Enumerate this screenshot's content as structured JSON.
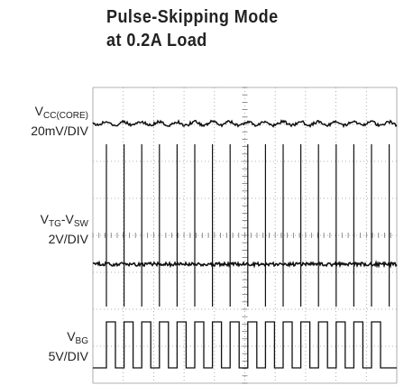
{
  "header": {
    "title_lines": [
      "Pulse-Skipping Mode",
      "at 0.2A Load"
    ]
  },
  "traces": [
    {
      "symbol": "V",
      "sub": "CC(CORE)",
      "scale": "20mV/DIV"
    },
    {
      "symbol": "V",
      "sub": "TG",
      "sep": "-V",
      "sub2": "SW",
      "scale": "2V/DIV"
    },
    {
      "symbol": "V",
      "sub": "BG",
      "scale": "5V/DIV"
    }
  ]
}
